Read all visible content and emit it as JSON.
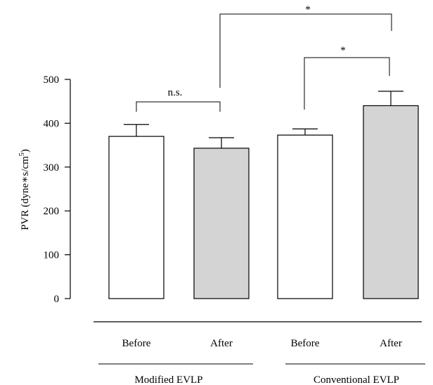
{
  "chart_data": {
    "type": "bar",
    "ylabel": "PVR (dyne∗s/cm",
    "ylabel_sup": "5",
    "ylabel_close": ")",
    "ylim": [
      0,
      500
    ],
    "yticks": [
      0,
      100,
      200,
      300,
      400,
      500
    ],
    "categories": [
      "Before",
      "After",
      "Before",
      "After"
    ],
    "groups": [
      "Modified EVLP",
      "Conventional EVLP"
    ],
    "values": [
      370,
      343,
      373,
      440
    ],
    "errors": [
      27,
      24,
      14,
      33
    ],
    "bar_colors": [
      "#ffffff",
      "#d4d4d4",
      "#ffffff",
      "#d4d4d4"
    ],
    "significance": [
      {
        "label": "n.s.",
        "from": 0,
        "to": 1
      },
      {
        "label": "*",
        "from": 2,
        "to": 3
      },
      {
        "label": "*",
        "from": 1,
        "to": 3
      }
    ]
  }
}
